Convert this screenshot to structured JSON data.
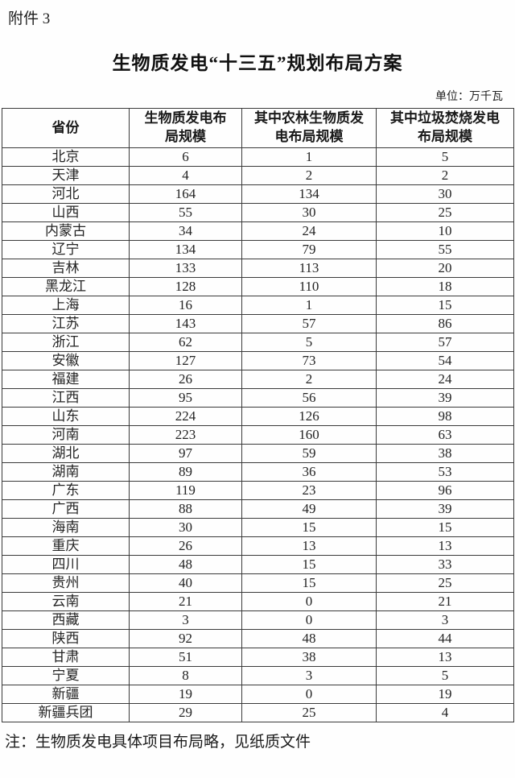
{
  "page": {
    "attachment_label": "附件 3",
    "title": "生物质发电“十三五”规划布局方案",
    "unit_note": "单位：万千瓦",
    "footnote": "注：生物质发电具体项目布局略，见纸质文件"
  },
  "table": {
    "columns": [
      "省份",
      "生物质发电布局规模",
      "其中农林生物质发电布局规模",
      "其中垃圾焚烧发电布局规模"
    ],
    "rows": [
      {
        "province": "北京",
        "total": 6,
        "agri_forest": 1,
        "waste_incineration": 5
      },
      {
        "province": "天津",
        "total": 4,
        "agri_forest": 2,
        "waste_incineration": 2
      },
      {
        "province": "河北",
        "total": 164,
        "agri_forest": 134,
        "waste_incineration": 30
      },
      {
        "province": "山西",
        "total": 55,
        "agri_forest": 30,
        "waste_incineration": 25
      },
      {
        "province": "内蒙古",
        "total": 34,
        "agri_forest": 24,
        "waste_incineration": 10
      },
      {
        "province": "辽宁",
        "total": 134,
        "agri_forest": 79,
        "waste_incineration": 55
      },
      {
        "province": "吉林",
        "total": 133,
        "agri_forest": 113,
        "waste_incineration": 20
      },
      {
        "province": "黑龙江",
        "total": 128,
        "agri_forest": 110,
        "waste_incineration": 18
      },
      {
        "province": "上海",
        "total": 16,
        "agri_forest": 1,
        "waste_incineration": 15
      },
      {
        "province": "江苏",
        "total": 143,
        "agri_forest": 57,
        "waste_incineration": 86
      },
      {
        "province": "浙江",
        "total": 62,
        "agri_forest": 5,
        "waste_incineration": 57
      },
      {
        "province": "安徽",
        "total": 127,
        "agri_forest": 73,
        "waste_incineration": 54
      },
      {
        "province": "福建",
        "total": 26,
        "agri_forest": 2,
        "waste_incineration": 24
      },
      {
        "province": "江西",
        "total": 95,
        "agri_forest": 56,
        "waste_incineration": 39
      },
      {
        "province": "山东",
        "total": 224,
        "agri_forest": 126,
        "waste_incineration": 98
      },
      {
        "province": "河南",
        "total": 223,
        "agri_forest": 160,
        "waste_incineration": 63
      },
      {
        "province": "湖北",
        "total": 97,
        "agri_forest": 59,
        "waste_incineration": 38
      },
      {
        "province": "湖南",
        "total": 89,
        "agri_forest": 36,
        "waste_incineration": 53
      },
      {
        "province": "广东",
        "total": 119,
        "agri_forest": 23,
        "waste_incineration": 96
      },
      {
        "province": "广西",
        "total": 88,
        "agri_forest": 49,
        "waste_incineration": 39
      },
      {
        "province": "海南",
        "total": 30,
        "agri_forest": 15,
        "waste_incineration": 15
      },
      {
        "province": "重庆",
        "total": 26,
        "agri_forest": 13,
        "waste_incineration": 13
      },
      {
        "province": "四川",
        "total": 48,
        "agri_forest": 15,
        "waste_incineration": 33
      },
      {
        "province": "贵州",
        "total": 40,
        "agri_forest": 15,
        "waste_incineration": 25
      },
      {
        "province": "云南",
        "total": 21,
        "agri_forest": 0,
        "waste_incineration": 21
      },
      {
        "province": "西藏",
        "total": 3,
        "agri_forest": 0,
        "waste_incineration": 3
      },
      {
        "province": "陕西",
        "total": 92,
        "agri_forest": 48,
        "waste_incineration": 44
      },
      {
        "province": "甘肃",
        "total": 51,
        "agri_forest": 38,
        "waste_incineration": 13
      },
      {
        "province": "宁夏",
        "total": 8,
        "agri_forest": 3,
        "waste_incineration": 5
      },
      {
        "province": "新疆",
        "total": 19,
        "agri_forest": 0,
        "waste_incineration": 19
      },
      {
        "province": "新疆兵团",
        "total": 29,
        "agri_forest": 25,
        "waste_incineration": 4
      }
    ]
  }
}
